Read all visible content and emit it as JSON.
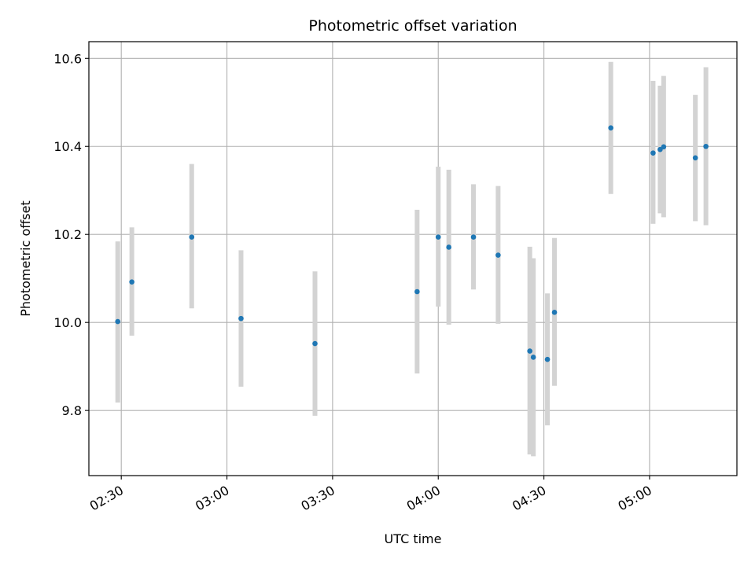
{
  "chart_data": {
    "type": "scatter",
    "title": "Photometric offset variation",
    "xlabel": "UTC time",
    "ylabel": "Photometric offset",
    "grid": true,
    "xlim_minutes": [
      140.8,
      324.8
    ],
    "ylim": [
      9.652,
      10.638
    ],
    "x_ticks": [
      {
        "minutes": 150,
        "label": "02:30"
      },
      {
        "minutes": 180,
        "label": "03:00"
      },
      {
        "minutes": 210,
        "label": "03:30"
      },
      {
        "minutes": 240,
        "label": "04:00"
      },
      {
        "minutes": 270,
        "label": "04:30"
      },
      {
        "minutes": 300,
        "label": "05:00"
      }
    ],
    "y_ticks": [
      {
        "value": 9.8,
        "label": "9.8"
      },
      {
        "value": 10.0,
        "label": "10.0"
      },
      {
        "value": 10.2,
        "label": "10.2"
      },
      {
        "value": 10.4,
        "label": "10.4"
      },
      {
        "value": 10.6,
        "label": "10.6"
      }
    ],
    "marker_color": "#1f77b4",
    "errorbar_color": "#d3d3d3",
    "points": [
      {
        "t": "02:29",
        "y": 10.002,
        "lo": 9.818,
        "hi": 10.184
      },
      {
        "t": "02:33",
        "y": 10.092,
        "lo": 9.97,
        "hi": 10.216
      },
      {
        "t": "02:50",
        "y": 10.194,
        "lo": 10.032,
        "hi": 10.36
      },
      {
        "t": "03:04",
        "y": 10.009,
        "lo": 9.854,
        "hi": 10.164
      },
      {
        "t": "03:25",
        "y": 9.952,
        "lo": 9.788,
        "hi": 10.116
      },
      {
        "t": "03:54",
        "y": 10.07,
        "lo": 9.884,
        "hi": 10.256
      },
      {
        "t": "04:00",
        "y": 10.194,
        "lo": 10.036,
        "hi": 10.354
      },
      {
        "t": "04:03",
        "y": 10.171,
        "lo": 9.995,
        "hi": 10.347
      },
      {
        "t": "04:10",
        "y": 10.194,
        "lo": 10.075,
        "hi": 10.314
      },
      {
        "t": "04:17",
        "y": 10.153,
        "lo": 9.997,
        "hi": 10.31
      },
      {
        "t": "04:26",
        "y": 9.935,
        "lo": 9.7,
        "hi": 10.172
      },
      {
        "t": "04:27",
        "y": 9.921,
        "lo": 9.696,
        "hi": 10.146
      },
      {
        "t": "04:31",
        "y": 9.916,
        "lo": 9.766,
        "hi": 10.066
      },
      {
        "t": "04:33",
        "y": 10.023,
        "lo": 9.856,
        "hi": 10.192
      },
      {
        "t": "04:49",
        "y": 10.442,
        "lo": 10.292,
        "hi": 10.592
      },
      {
        "t": "05:01",
        "y": 10.385,
        "lo": 10.224,
        "hi": 10.549
      },
      {
        "t": "05:03",
        "y": 10.393,
        "lo": 10.248,
        "hi": 10.538
      },
      {
        "t": "05:04",
        "y": 10.399,
        "lo": 10.239,
        "hi": 10.56
      },
      {
        "t": "05:13",
        "y": 10.374,
        "lo": 10.23,
        "hi": 10.517
      },
      {
        "t": "05:16",
        "y": 10.4,
        "lo": 10.221,
        "hi": 10.58
      }
    ]
  }
}
